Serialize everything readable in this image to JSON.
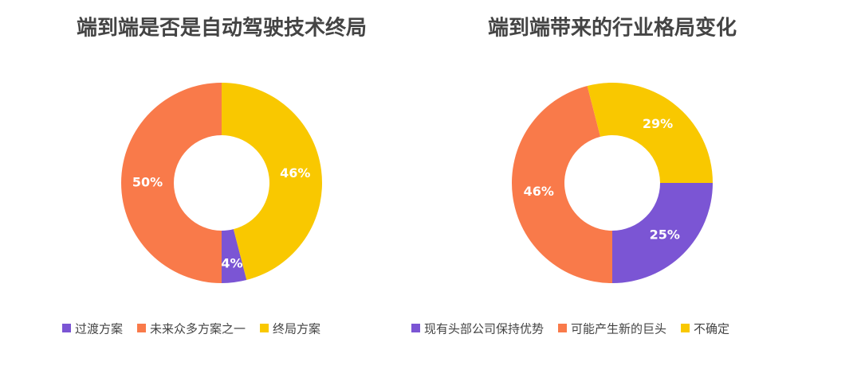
{
  "chart_data": [
    {
      "type": "donut",
      "title": "端到端是否是自动驾驶技术终局",
      "start_angle": 165.6,
      "categories": [
        "过渡方案",
        "未来众多方案之一",
        "终局方案"
      ],
      "values": [
        4,
        50,
        46
      ],
      "value_labels": [
        "4%",
        "50%",
        "46%"
      ],
      "colors": [
        "#7b55d4",
        "#f97a4a",
        "#f9c800"
      ]
    },
    {
      "type": "donut",
      "title": "端到端带来的行业格局变化",
      "start_angle": 90,
      "categories": [
        "现有头部公司保持优势",
        "可能产生新的巨头",
        "不确定"
      ],
      "values": [
        25,
        46,
        29
      ],
      "value_labels": [
        "25%",
        "46%",
        "29%"
      ],
      "colors": [
        "#7b55d4",
        "#f97a4a",
        "#f9c800"
      ]
    }
  ]
}
